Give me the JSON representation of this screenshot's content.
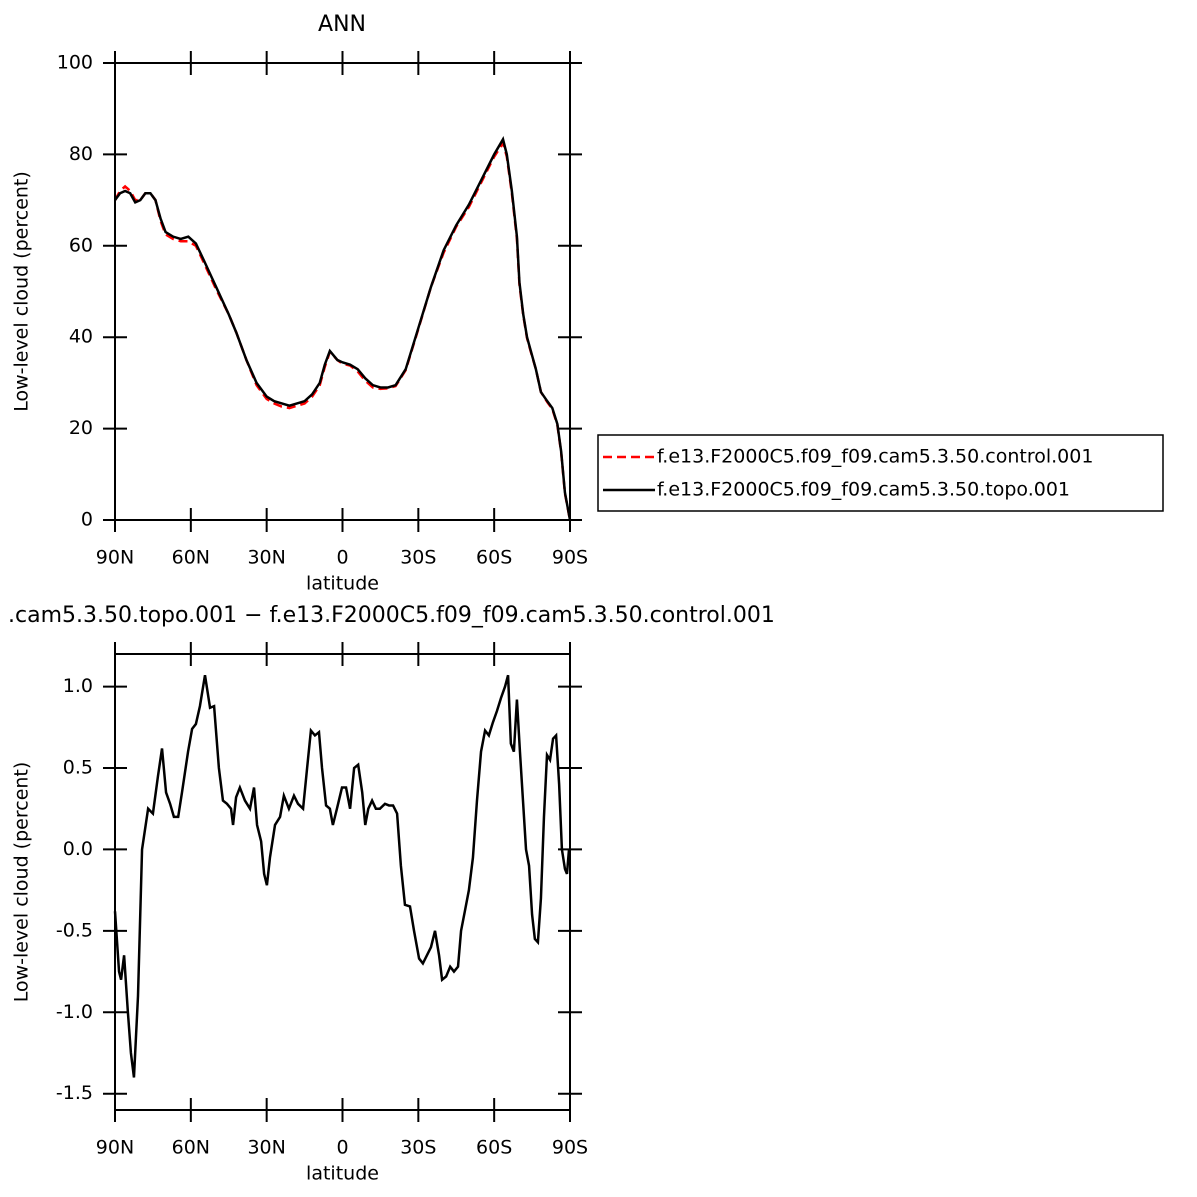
{
  "chart_data": [
    {
      "type": "line",
      "title": "ANN",
      "xlabel": "latitude",
      "ylabel": "Low-level cloud (percent)",
      "x": [
        90,
        88,
        86,
        84,
        82,
        80,
        78,
        76,
        74,
        72,
        70,
        67,
        64,
        61,
        58,
        55,
        50,
        45,
        42,
        38,
        34,
        30,
        27,
        24,
        21,
        18,
        15,
        12,
        9,
        7,
        5,
        2,
        0,
        -3,
        -6,
        -9,
        -12,
        -15,
        -18,
        -21,
        -25,
        -30,
        -35,
        -40,
        -45,
        -50,
        -55,
        -60,
        -63.5,
        -65,
        -67,
        -69,
        -70,
        -71.5,
        -73,
        -74.5,
        -76.5,
        -78.5,
        -81,
        -83,
        -85,
        -86.5,
        -88,
        -90
      ],
      "series": [
        {
          "name": "f.e13.F2000C5.f09_f09.cam5.3.50.control.001",
          "color": "#ff0000",
          "dash": "dashed",
          "values": [
            70,
            72,
            73,
            72,
            70,
            70,
            71.5,
            71.5,
            70,
            65.5,
            62.5,
            61.5,
            61,
            61,
            60,
            56.5,
            50.5,
            45,
            41,
            35,
            29.5,
            26.5,
            25.5,
            24.8,
            24.5,
            25,
            25.5,
            27,
            29.5,
            33.5,
            36.8,
            35,
            34.2,
            33.8,
            32.5,
            30.5,
            29,
            28.7,
            28.8,
            29.3,
            32.8,
            41.8,
            51,
            58.5,
            64.2,
            68.5,
            74,
            79.5,
            82.5,
            79.5,
            71.5,
            61.5,
            51.5,
            44.8,
            39.8,
            36.8,
            33,
            28,
            25.8,
            24.3,
            20.8,
            14.8,
            5.8,
            0
          ]
        },
        {
          "name": "f.e13.F2000C5.f09_f09.cam5.3.50.topo.001",
          "color": "#000000",
          "dash": "solid",
          "values": [
            70,
            71.5,
            72,
            71.5,
            69.5,
            70,
            71.5,
            71.5,
            70,
            66,
            63,
            62,
            61.5,
            62,
            60.5,
            57,
            51,
            45,
            41,
            35,
            30,
            27,
            26,
            25.5,
            25,
            25.5,
            26,
            27.5,
            30,
            34,
            37,
            35,
            34.5,
            34,
            33,
            31,
            29.5,
            29,
            29,
            29.5,
            33,
            42,
            51,
            59,
            64.5,
            69,
            74.5,
            80,
            83.3,
            80,
            72,
            62,
            52,
            45,
            40,
            37,
            33,
            28,
            26,
            24.5,
            21,
            15,
            6,
            0
          ]
        }
      ],
      "xlim": [
        90,
        -90
      ],
      "xticks": [
        {
          "value": 90,
          "label": "90N"
        },
        {
          "value": 60,
          "label": "60N"
        },
        {
          "value": 30,
          "label": "30N"
        },
        0,
        {
          "value": -30,
          "label": "30S"
        },
        {
          "value": -60,
          "label": "60S"
        },
        {
          "value": -90,
          "label": "90S"
        }
      ],
      "ylim": [
        0,
        100
      ],
      "yticks": [
        0,
        20,
        40,
        60,
        80,
        100
      ],
      "legend": "right"
    },
    {
      "type": "line",
      "title": ".cam5.3.50.topo.001 − f.e13.F2000C5.f09_f09.cam5.3.50.control.001",
      "xlabel": "latitude",
      "ylabel": "Low-level cloud (percent)",
      "x": [
        90,
        88.4,
        87.6,
        86.4,
        84.9,
        83.7,
        82.5,
        80.9,
        79.3,
        76.9,
        75,
        73,
        71.4,
        69.8,
        68.2,
        66.7,
        65,
        63.5,
        61.1,
        59.5,
        58,
        56.4,
        54.4,
        52.4,
        50.8,
        48.9,
        47.3,
        45.7,
        44.1,
        43.3,
        42.1,
        40.6,
        38.6,
        36.6,
        35,
        33.8,
        32.2,
        31,
        29.9,
        28.7,
        26.7,
        24.7,
        23.2,
        21.2,
        19.2,
        17.6,
        15.6,
        14,
        12.5,
        10.9,
        9.3,
        8.1,
        6.5,
        5,
        3.8,
        2.2,
        0.2,
        -1.4,
        -3,
        -4.6,
        -6.2,
        -7.8,
        -9,
        -10.2,
        -11.7,
        -13.2,
        -14.8,
        -16.8,
        -18.4,
        -20,
        -21.6,
        -23.1,
        -24.7,
        -26.7,
        -28.3,
        -30.3,
        -31.8,
        -33.4,
        -35,
        -36.6,
        -38.2,
        -39.4,
        -41,
        -42.6,
        -44.1,
        -45.7,
        -46.9,
        -48.4,
        -50,
        -51.6,
        -53.2,
        -54.8,
        -56.4,
        -57.9,
        -59.5,
        -61.1,
        -62.7,
        -64.3,
        -65.5,
        -66.6,
        -67.8,
        -69,
        -70.2,
        -71.4,
        -72.6,
        -73.8,
        -75,
        -76.1,
        -77.3,
        -78.5,
        -79.7,
        -80.9,
        -82.1,
        -83.3,
        -84.5,
        -85.7,
        -86.8,
        -88,
        -88.8,
        -89.6
      ],
      "values": [
        -0.38,
        -0.75,
        -0.8,
        -0.65,
        -1.0,
        -1.25,
        -1.4,
        -0.9,
        0.0,
        0.25,
        0.22,
        0.45,
        0.62,
        0.35,
        0.28,
        0.2,
        0.2,
        0.35,
        0.6,
        0.74,
        0.77,
        0.88,
        1.07,
        0.87,
        0.88,
        0.5,
        0.3,
        0.28,
        0.25,
        0.15,
        0.32,
        0.38,
        0.3,
        0.25,
        0.38,
        0.15,
        0.05,
        -0.15,
        -0.22,
        -0.05,
        0.15,
        0.2,
        0.33,
        0.25,
        0.33,
        0.28,
        0.25,
        0.5,
        0.73,
        0.7,
        0.72,
        0.5,
        0.27,
        0.25,
        0.15,
        0.25,
        0.38,
        0.38,
        0.25,
        0.5,
        0.52,
        0.35,
        0.15,
        0.25,
        0.3,
        0.25,
        0.25,
        0.28,
        0.27,
        0.27,
        0.22,
        -0.1,
        -0.34,
        -0.35,
        -0.5,
        -0.67,
        -0.7,
        -0.65,
        -0.6,
        -0.5,
        -0.65,
        -0.8,
        -0.78,
        -0.72,
        -0.75,
        -0.72,
        -0.5,
        -0.38,
        -0.25,
        -0.05,
        0.3,
        0.6,
        0.73,
        0.7,
        0.78,
        0.85,
        0.93,
        1.0,
        1.07,
        0.65,
        0.6,
        0.92,
        0.6,
        0.3,
        0.0,
        -0.1,
        -0.4,
        -0.55,
        -0.57,
        -0.3,
        0.2,
        0.58,
        0.55,
        0.68,
        0.7,
        0.4,
        0.0,
        -0.12,
        -0.15,
        0.0
      ],
      "color": "#000000",
      "xlim": [
        90,
        -90
      ],
      "xticks": [
        {
          "value": 90,
          "label": "90N"
        },
        {
          "value": 60,
          "label": "60N"
        },
        {
          "value": 30,
          "label": "30N"
        },
        0,
        {
          "value": -30,
          "label": "30S"
        },
        {
          "value": -60,
          "label": "60S"
        },
        {
          "value": -90,
          "label": "90S"
        }
      ],
      "ylim": [
        -1.6,
        1.2
      ],
      "yticks": [
        {
          "value": -1.5,
          "label": "-1.5"
        },
        {
          "value": -1,
          "label": "-1.0"
        },
        {
          "value": -0.5,
          "label": "-0.5"
        },
        {
          "value": 0,
          "label": "0.0"
        },
        0.5,
        {
          "value": 1,
          "label": "1.0"
        }
      ]
    }
  ]
}
